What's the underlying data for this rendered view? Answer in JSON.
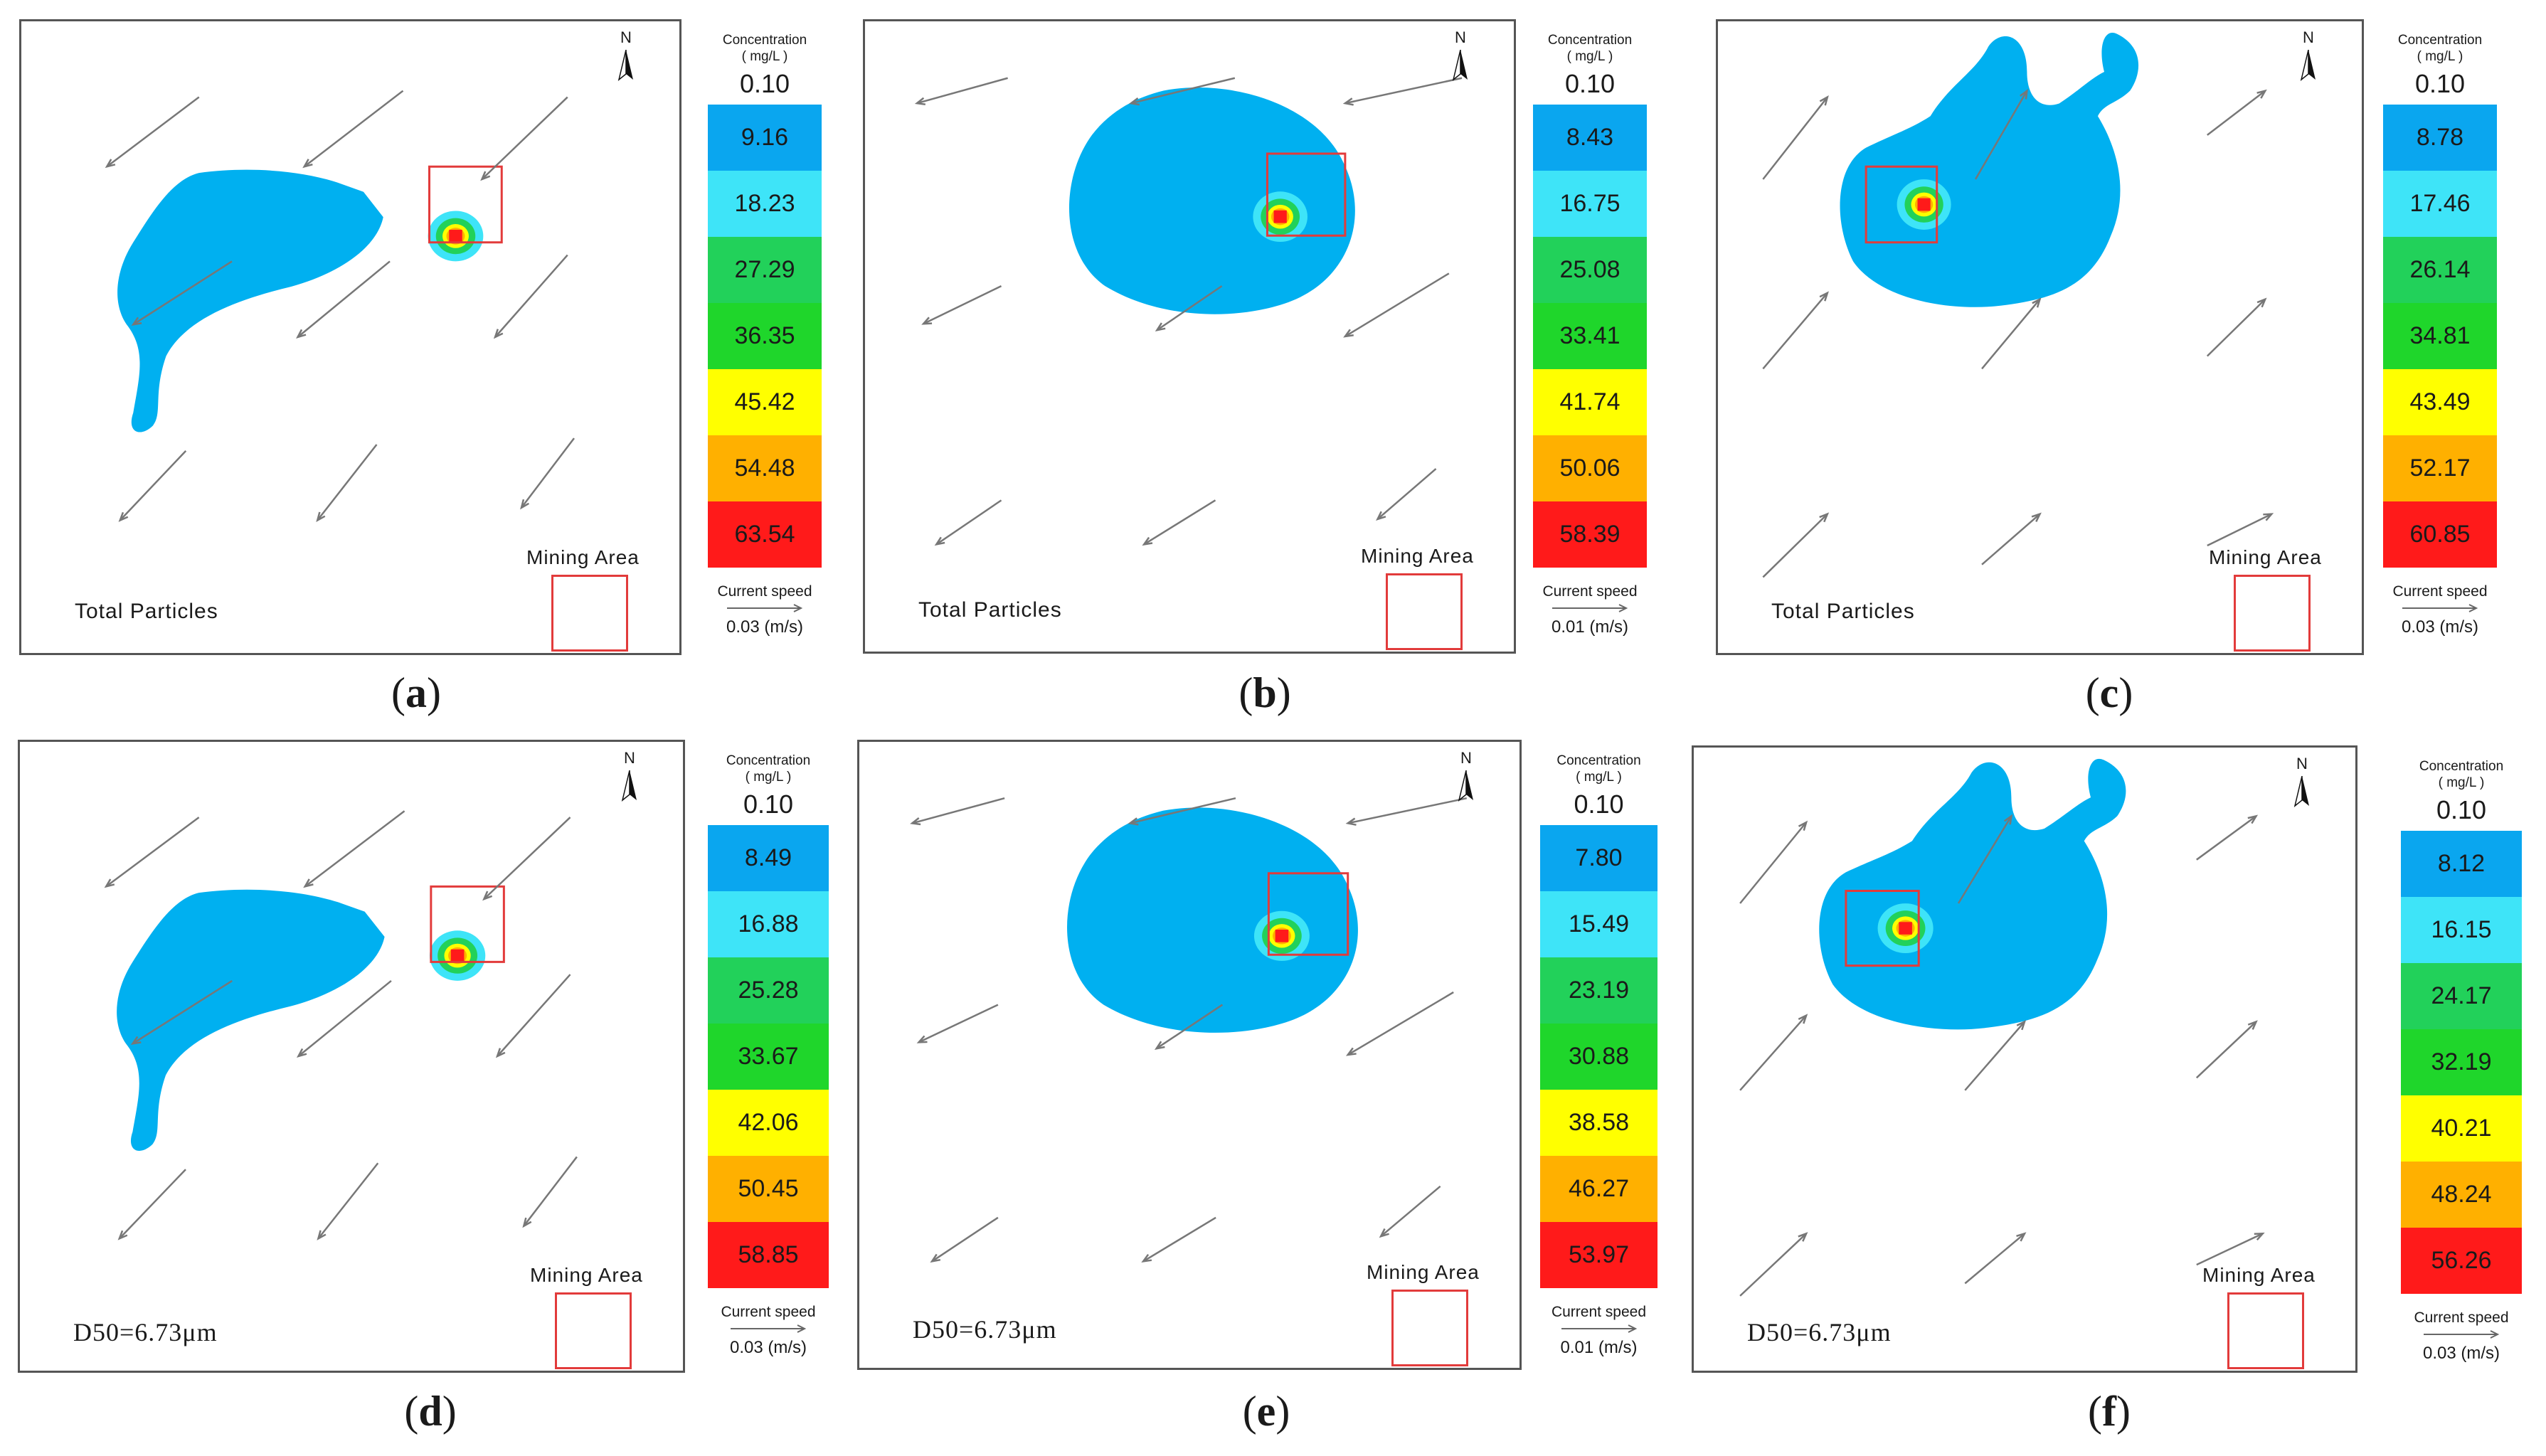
{
  "colors": {
    "plume": "#00b0f0",
    "bins": [
      "#0aa6ef",
      "#3ee4f8",
      "#22d15a",
      "#1fd62b",
      "#ffff00",
      "#ffb000",
      "#ff1a1a"
    ],
    "arrow": "#777777",
    "mining": "#e23b3b",
    "border": "#555555"
  },
  "legend_title": "Concentration",
  "unit": "( mg/L )",
  "speed_title": "Current speed",
  "north_label": "N",
  "mining_label": "Mining Area",
  "panels": [
    {
      "caption_letter": "a",
      "label": "Total Particles",
      "top_value": "0.10",
      "bins": [
        "9.16",
        "18.23",
        "27.29",
        "36.35",
        "45.42",
        "54.48",
        "63.54"
      ],
      "speed": "0.03 (m/s)",
      "flow": "southwest",
      "plume_shape": "southwest-tail"
    },
    {
      "caption_letter": "b",
      "label": "Total Particles",
      "top_value": "0.10",
      "bins": [
        "8.43",
        "16.75",
        "25.08",
        "33.41",
        "41.74",
        "50.06",
        "58.39"
      ],
      "speed": "0.01 (m/s)",
      "flow": "west",
      "plume_shape": "round"
    },
    {
      "caption_letter": "c",
      "label": "Total Particles",
      "top_value": "0.10",
      "bins": [
        "8.78",
        "17.46",
        "26.14",
        "34.81",
        "43.49",
        "52.17",
        "60.85"
      ],
      "speed": "0.03 (m/s)",
      "flow": "northeast",
      "plume_shape": "northeast-lobes"
    },
    {
      "caption_letter": "d",
      "label": "D50=6.73μm",
      "top_value": "0.10",
      "bins": [
        "8.49",
        "16.88",
        "25.28",
        "33.67",
        "42.06",
        "50.45",
        "58.85"
      ],
      "speed": "0.03 (m/s)",
      "flow": "southwest",
      "plume_shape": "southwest-tail"
    },
    {
      "caption_letter": "e",
      "label": "D50=6.73μm",
      "top_value": "0.10",
      "bins": [
        "7.80",
        "15.49",
        "23.19",
        "30.88",
        "38.58",
        "46.27",
        "53.97"
      ],
      "speed": "0.01 (m/s)",
      "flow": "west",
      "plume_shape": "round"
    },
    {
      "caption_letter": "f",
      "label": "D50=6.73μm",
      "top_value": "0.10",
      "bins": [
        "8.12",
        "16.15",
        "24.17",
        "32.19",
        "40.21",
        "48.24",
        "56.26"
      ],
      "speed": "0.03 (m/s)",
      "flow": "northeast",
      "plume_shape": "northeast-lobes"
    }
  ]
}
